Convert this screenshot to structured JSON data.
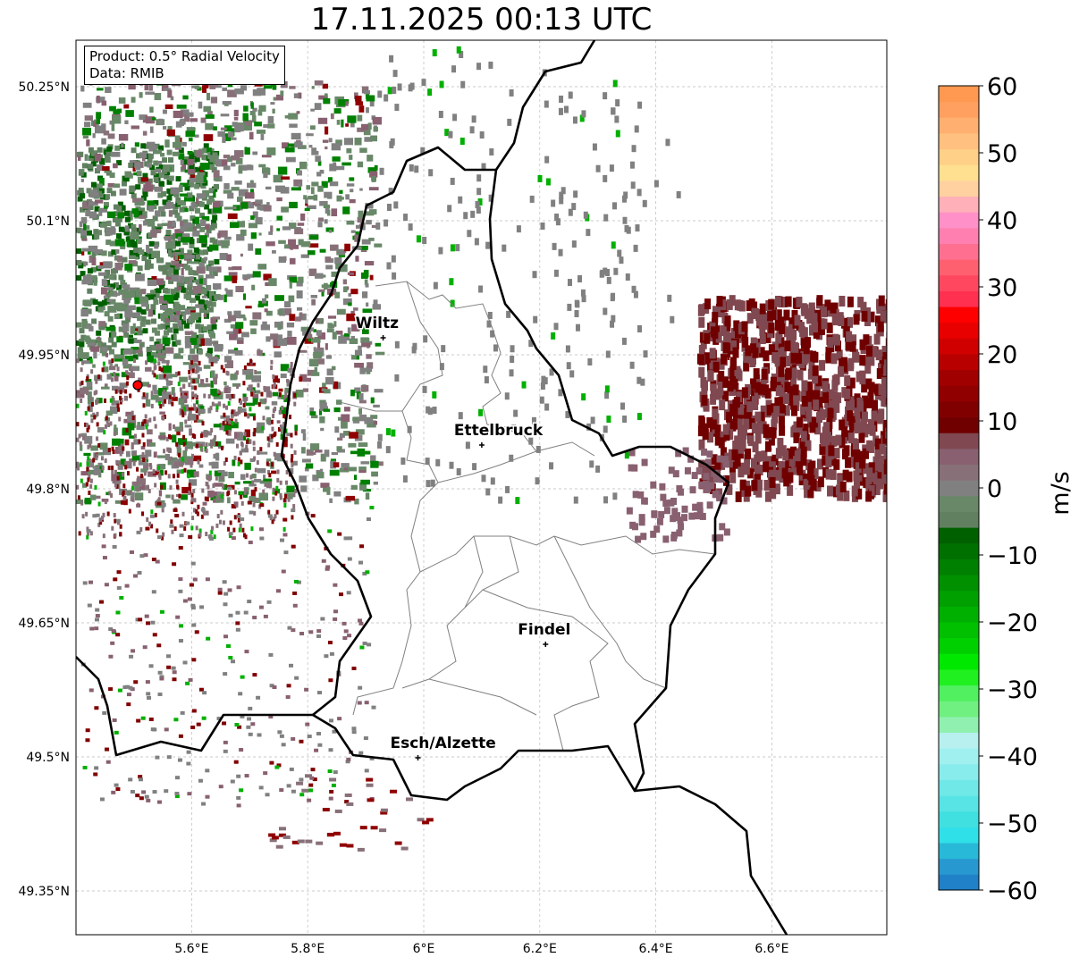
{
  "title": "17.11.2025 00:13 UTC",
  "info": {
    "product": "Product: 0.5° Radial Velocity",
    "data": "Data: RMIB"
  },
  "axes": {
    "lon_ticks": [
      {
        "v": 5.6,
        "label": "5.6°E"
      },
      {
        "v": 5.8,
        "label": "5.8°E"
      },
      {
        "v": 6.0,
        "label": "6°E"
      },
      {
        "v": 6.2,
        "label": "6.2°E"
      },
      {
        "v": 6.4,
        "label": "6.4°E"
      },
      {
        "v": 6.6,
        "label": "6.6°E"
      }
    ],
    "lat_ticks": [
      {
        "v": 50.25,
        "label": "50.25°N"
      },
      {
        "v": 50.1,
        "label": "50.1°N"
      },
      {
        "v": 49.95,
        "label": "49.95°N"
      },
      {
        "v": 49.8,
        "label": "49.8°N"
      },
      {
        "v": 49.65,
        "label": "49.65°N"
      },
      {
        "v": 49.5,
        "label": "49.5°N"
      },
      {
        "v": 49.35,
        "label": "49.35°N"
      }
    ]
  },
  "cities": [
    {
      "name": "Wiltz",
      "lon": 5.93,
      "lat": 49.969
    },
    {
      "name": "Ettelbruck",
      "lon": 6.1,
      "lat": 49.849
    },
    {
      "name": "Findel",
      "lon": 6.21,
      "lat": 49.626
    },
    {
      "name": "Esch/Alzette",
      "lon": 5.99,
      "lat": 49.499
    }
  ],
  "radar": {
    "lon": 5.507,
    "lat": 49.916,
    "color": "#ff0000"
  },
  "colorbar": {
    "label": "m/s",
    "min": -60,
    "max": 60,
    "ticks": [
      "60",
      "50",
      "40",
      "30",
      "20",
      "10",
      "0",
      "−10",
      "−20",
      "−30",
      "−40",
      "−50",
      "−60"
    ],
    "colors": [
      "#2080c8",
      "#2898d0",
      "#28b8d8",
      "#30e0e8",
      "#40e0e0",
      "#58e4e4",
      "#70e8e8",
      "#88ecec",
      "#a0f0f0",
      "#b8f0f0",
      "#90f0b0",
      "#70f080",
      "#50f060",
      "#20f020",
      "#00e800",
      "#00d000",
      "#00c000",
      "#00b000",
      "#00a000",
      "#009000",
      "#008000",
      "#007000",
      "#006000",
      "#608060",
      "#688868",
      "#808080",
      "#887078",
      "#886070",
      "#804850",
      "#700000",
      "#800000",
      "#900000",
      "#a00000",
      "#b80000",
      "#d00000",
      "#e80000",
      "#ff0000",
      "#ff3050",
      "#ff4860",
      "#ff6070",
      "#ff7090",
      "#ff80b0",
      "#ff90c8",
      "#ffb0b8",
      "#ffd0a0",
      "#ffe090",
      "#ffd088",
      "#ffc080",
      "#ffb070",
      "#ffa060",
      "#ff9850"
    ]
  }
}
